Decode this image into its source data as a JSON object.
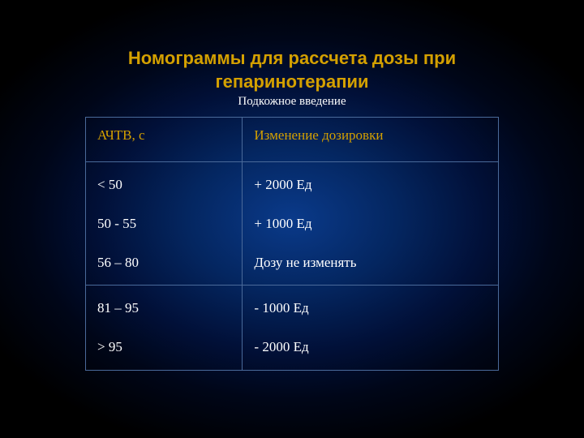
{
  "background": {
    "type": "radial-gradient",
    "center_color": "#0a3a8a",
    "mid_color": "#011038",
    "outer_color": "#000000"
  },
  "title_line1": "Номограммы для рассчета дозы при",
  "title_line2": "гепаринотерапии",
  "subtitle": "Подкожное введение",
  "colors": {
    "title": "#d4a000",
    "text": "#ffffff",
    "header": "#d4a000",
    "border": "#4a6a9a"
  },
  "table": {
    "type": "table",
    "columns": [
      "АЧТВ, с",
      "Изменение дозировки"
    ],
    "column_widths": [
      "38%",
      "62%"
    ],
    "header_fontsize": 17,
    "cell_fontsize": 17,
    "group1": {
      "left": [
        "< 50",
        "50 - 55",
        "56 – 80"
      ],
      "right": [
        "+ 2000 Ед",
        "+ 1000 Ед",
        "Дозу не изменять"
      ]
    },
    "group2": {
      "left": [
        "81 – 95",
        "> 95"
      ],
      "right": [
        "- 1000 Ед",
        "- 2000 Ед"
      ]
    }
  }
}
